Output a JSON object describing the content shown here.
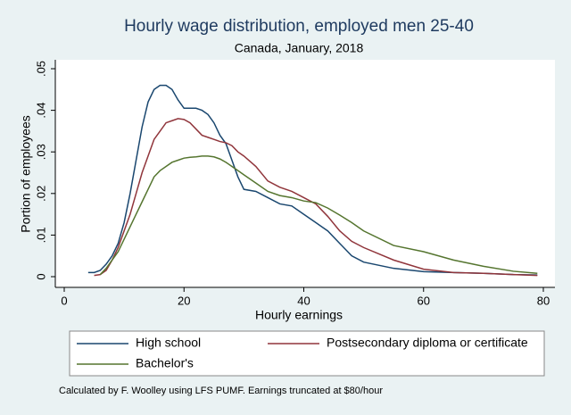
{
  "chart_data": {
    "type": "line",
    "title": "Hourly wage distribution, employed men 25-40",
    "subtitle": "Canada, January, 2018",
    "x_label": "Hourly earnings",
    "y_label": "Portion of employees",
    "note": "Calculated by F. Woolley using LFS PUMF. Earnings truncated at $80/hour",
    "x": [
      4,
      5,
      6,
      7,
      8,
      9,
      10,
      11,
      12,
      13,
      14,
      15,
      16,
      17,
      18,
      19,
      20,
      21,
      22,
      23,
      24,
      25,
      26,
      27,
      28,
      29,
      30,
      32,
      34,
      36,
      38,
      40,
      42,
      44,
      46,
      48,
      50,
      55,
      60,
      65,
      70,
      75,
      79
    ],
    "series": [
      {
        "name": "High school",
        "color": "#1a476f",
        "values": [
          0.001,
          0.001,
          0.0015,
          0.003,
          0.005,
          0.008,
          0.013,
          0.02,
          0.028,
          0.036,
          0.042,
          0.045,
          0.046,
          0.046,
          0.045,
          0.0425,
          0.0405,
          0.0405,
          0.0405,
          0.04,
          0.039,
          0.037,
          0.034,
          0.032,
          0.028,
          0.024,
          0.021,
          0.0205,
          0.019,
          0.0175,
          0.017,
          0.015,
          0.013,
          0.011,
          0.008,
          0.005,
          0.0035,
          0.002,
          0.0012,
          0.001,
          0.0008,
          0.0005,
          0.0004
        ]
      },
      {
        "name": "Postsecondary diploma or certificate",
        "color": "#90353b",
        "values": [
          null,
          0.0003,
          0.0005,
          0.0015,
          0.004,
          0.007,
          0.011,
          0.015,
          0.02,
          0.025,
          0.029,
          0.033,
          0.035,
          0.037,
          0.0375,
          0.038,
          0.0378,
          0.037,
          0.0355,
          0.034,
          0.0335,
          0.033,
          0.0325,
          0.0322,
          0.0315,
          0.03,
          0.029,
          0.0265,
          0.023,
          0.0215,
          0.0205,
          0.019,
          0.0175,
          0.0145,
          0.011,
          0.0085,
          0.007,
          0.004,
          0.0018,
          0.001,
          0.0008,
          0.0005,
          0.0003
        ]
      },
      {
        "name": "Bachelor's",
        "color": "#55752f",
        "values": [
          null,
          null,
          0.0005,
          0.002,
          0.004,
          0.006,
          0.009,
          0.012,
          0.015,
          0.018,
          0.021,
          0.024,
          0.0255,
          0.0265,
          0.0275,
          0.028,
          0.0285,
          0.0287,
          0.0288,
          0.029,
          0.029,
          0.0288,
          0.0283,
          0.0275,
          0.0265,
          0.0255,
          0.0245,
          0.0225,
          0.0205,
          0.0195,
          0.019,
          0.0182,
          0.0178,
          0.0165,
          0.0148,
          0.013,
          0.011,
          0.0075,
          0.006,
          0.004,
          0.0025,
          0.0013,
          0.0008
        ]
      }
    ],
    "xlim": [
      0,
      80
    ],
    "xticks": [
      0,
      20,
      40,
      60,
      80
    ],
    "ylim": [
      0,
      0.05
    ],
    "yticks": [
      0,
      {
        "value": 0.01,
        "label": ".01"
      },
      {
        "value": 0.02,
        "label": ".02"
      },
      {
        "value": 0.03,
        "label": ".03"
      },
      {
        "value": 0.04,
        "label": ".04"
      },
      {
        "value": 0.05,
        "label": ".05"
      }
    ]
  }
}
